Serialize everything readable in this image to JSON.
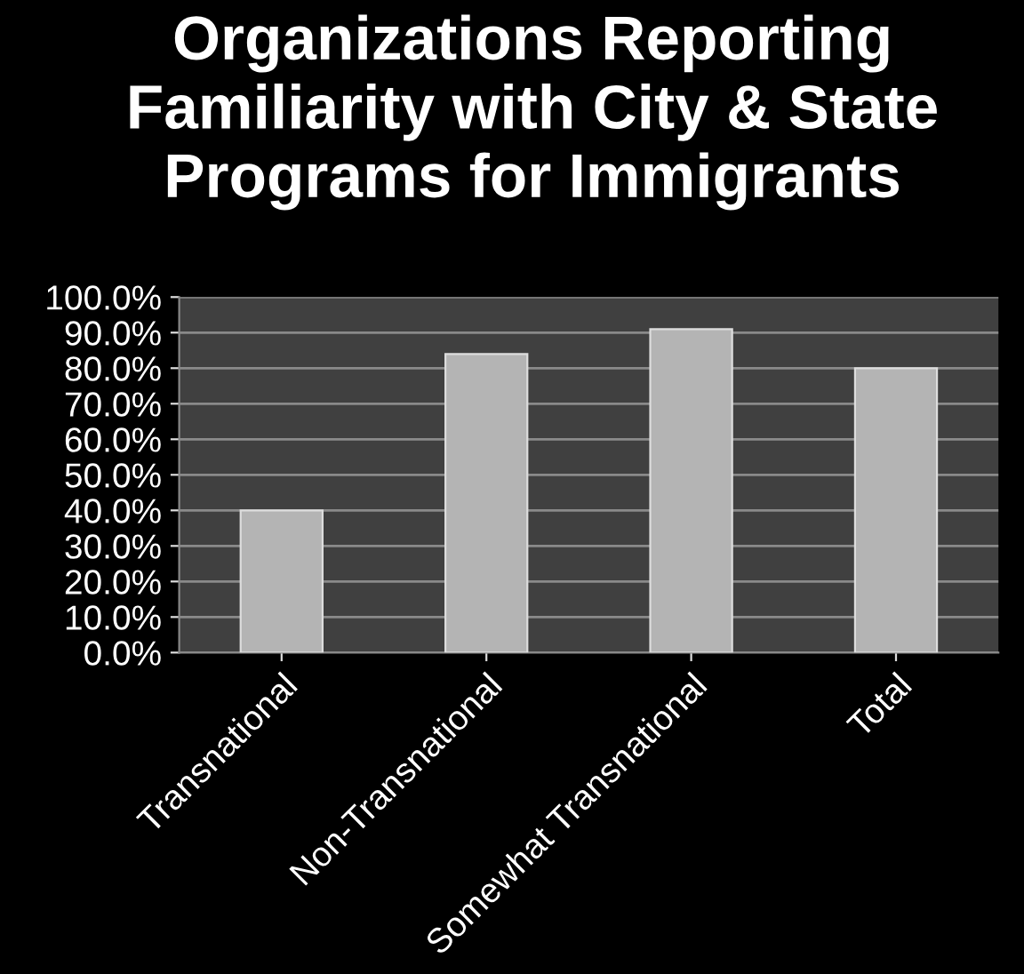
{
  "chart_data": {
    "type": "bar",
    "title": "Organizations Reporting Familiarity with City & State Programs for Immigrants",
    "categories": [
      "Transnational",
      "Non-Transnational",
      "Somewhat Transnational",
      "Total"
    ],
    "values": [
      40,
      84,
      91,
      80
    ],
    "color": "#b4b4b4",
    "ylim": [
      0,
      100
    ],
    "yticks": [
      {
        "value": 0,
        "label": "0.0%"
      },
      {
        "value": 10,
        "label": "10.0%"
      },
      {
        "value": 20,
        "label": "20.0%"
      },
      {
        "value": 30,
        "label": "30.0%"
      },
      {
        "value": 40,
        "label": "40.0%"
      },
      {
        "value": 50,
        "label": "50.0%"
      },
      {
        "value": 60,
        "label": "60.0%"
      },
      {
        "value": 70,
        "label": "70.0%"
      },
      {
        "value": 80,
        "label": "80.0%"
      },
      {
        "value": 90,
        "label": "90.0%"
      },
      {
        "value": 100,
        "label": "100.0%"
      }
    ],
    "grid": "y"
  }
}
